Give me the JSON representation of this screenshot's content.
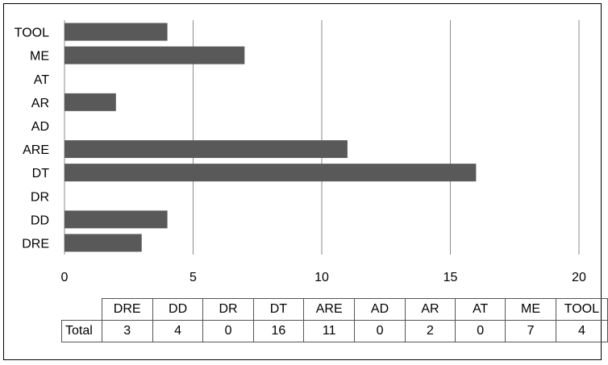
{
  "chart_data": {
    "type": "bar",
    "orientation": "horizontal",
    "categories": [
      "DRE",
      "DD",
      "DR",
      "DT",
      "ARE",
      "AD",
      "AR",
      "AT",
      "ME",
      "TOOL"
    ],
    "series": [
      {
        "name": "Total",
        "values": [
          3,
          4,
          0,
          16,
          11,
          0,
          2,
          0,
          7,
          4
        ],
        "color": "#595959"
      }
    ],
    "xlim": [
      0,
      20
    ],
    "x_ticks": [
      0,
      5,
      10,
      15,
      20
    ],
    "grid": true,
    "data_table": true
  },
  "table": {
    "row_label": "Total"
  }
}
